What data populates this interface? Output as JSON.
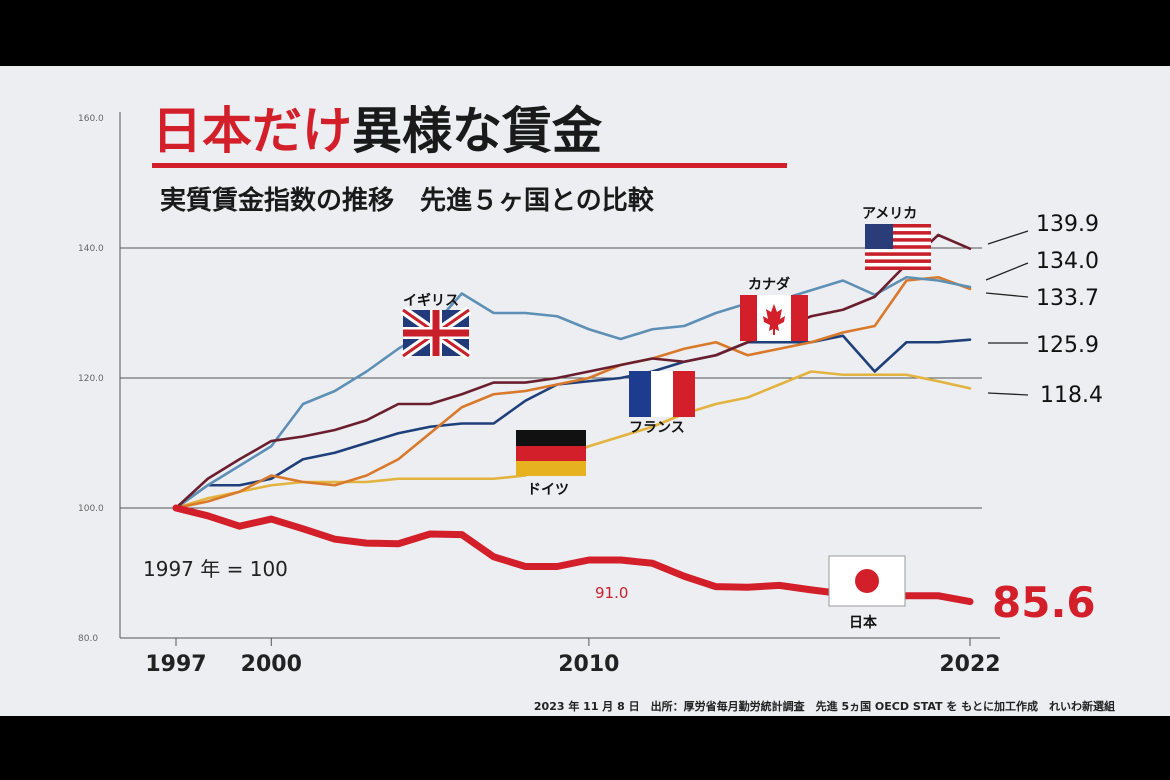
{
  "title_red": "日本だけ",
  "title_black": "異様な賃金",
  "subtitle": "実質賃金指数の推移　先進５ヶ国との比較",
  "base_note": "1997 年 = 100",
  "japan_label": "91.0",
  "source": "2023 年 11 月 8 日　出所：厚労省毎月勤労統計調査　先進 5ヵ国 OECD STAT を もとに加工作成　れいわ新選組",
  "colors": {
    "japan": "#d31f2a",
    "usa": "#6b1f2e",
    "uk": "#5e8fb5",
    "canada": "#d9792b",
    "france": "#1f3f7a",
    "germany": "#e2b33f"
  },
  "chart_data": {
    "type": "line",
    "title": "日本だけ異様な賃金",
    "subtitle": "実質賃金指数の推移　先進５ヶ国との比較",
    "xlabel": "",
    "ylabel": "",
    "x_ticks": [
      "1997",
      "2000",
      "2010",
      "2022"
    ],
    "y_ticks": [
      "80.0",
      "100.0",
      "120.0",
      "140.0",
      "160.0"
    ],
    "ylim": [
      80,
      160
    ],
    "xlim": [
      1997,
      2022
    ],
    "grid": true,
    "x": [
      1997,
      1998,
      1999,
      2000,
      2001,
      2002,
      2003,
      2004,
      2005,
      2006,
      2007,
      2008,
      2009,
      2010,
      2011,
      2012,
      2013,
      2014,
      2015,
      2016,
      2017,
      2018,
      2019,
      2020,
      2021,
      2022
    ],
    "series": [
      {
        "name": "アメリカ",
        "key": "usa",
        "end_label": "139.9",
        "values": [
          100,
          104.5,
          107.5,
          110.3,
          111.0,
          112.0,
          113.5,
          116.0,
          116.0,
          117.5,
          119.3,
          119.3,
          120.0,
          121.0,
          122.0,
          123.0,
          122.5,
          123.5,
          125.5,
          127.5,
          129.5,
          130.5,
          132.5,
          137.5,
          142.0,
          139.9
        ]
      },
      {
        "name": "イギリス",
        "key": "uk",
        "end_label": "134.0",
        "values": [
          100,
          103.5,
          106.5,
          109.5,
          116.0,
          118.0,
          121.0,
          124.5,
          127.5,
          133.0,
          130.0,
          130.0,
          129.5,
          127.5,
          126.0,
          127.5,
          128.0,
          130.0,
          131.5,
          132.0,
          133.5,
          135.0,
          132.8,
          135.5,
          135.0,
          134.0
        ]
      },
      {
        "name": "カナダ",
        "key": "canada",
        "end_label": "133.7",
        "values": [
          100,
          101.0,
          102.5,
          105.0,
          104.0,
          103.5,
          105.0,
          107.5,
          111.5,
          115.5,
          117.5,
          118.0,
          119.0,
          120.0,
          122.0,
          123.0,
          124.5,
          125.5,
          123.5,
          124.5,
          125.5,
          127.0,
          128.0,
          135.0,
          135.5,
          133.7
        ]
      },
      {
        "name": "フランス",
        "key": "france",
        "end_label": "125.9",
        "values": [
          100,
          103.5,
          103.5,
          104.5,
          107.5,
          108.5,
          110.0,
          111.5,
          112.5,
          113.0,
          113.0,
          116.5,
          119.0,
          119.5,
          120.0,
          121.0,
          122.5,
          123.5,
          125.5,
          125.5,
          125.5,
          126.5,
          121.0,
          125.5,
          125.5,
          125.9
        ]
      },
      {
        "name": "ドイツ",
        "key": "germany",
        "end_label": "118.4",
        "values": [
          100,
          101.5,
          102.5,
          103.5,
          104.0,
          104.0,
          104.0,
          104.5,
          104.5,
          104.5,
          104.5,
          105.0,
          107.5,
          109.5,
          111.0,
          112.5,
          114.5,
          116.0,
          117.0,
          119.0,
          121.0,
          120.5,
          120.5,
          120.5,
          119.5,
          118.4
        ]
      },
      {
        "name": "日本",
        "key": "japan",
        "end_label": "85.6",
        "values": [
          100,
          98.8,
          97.2,
          98.3,
          96.8,
          95.2,
          94.6,
          94.5,
          96.0,
          95.9,
          92.5,
          91.0,
          91.0,
          92.0,
          92.0,
          91.5,
          89.5,
          87.9,
          87.8,
          88.1,
          87.4,
          86.8,
          86.3,
          86.5,
          86.5,
          85.6
        ]
      }
    ]
  }
}
